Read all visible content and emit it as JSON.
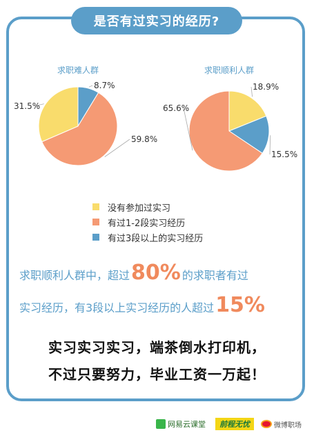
{
  "header": {
    "title": "是否有过实习的经历?"
  },
  "colors": {
    "none": "#f9dc6c",
    "one_two": "#f59a74",
    "three_plus": "#5b9ec9",
    "frame": "#5b9ec9",
    "highlight": "#f08a5d"
  },
  "chart_data": [
    {
      "type": "pie",
      "title": "求职难人群",
      "slices": [
        {
          "name": "没有参加过实习",
          "value": 31.5,
          "label": "31.5%"
        },
        {
          "name": "有过1-2段实习经历",
          "value": 59.8,
          "label": "59.8%"
        },
        {
          "name": "有过3段以上的实习经历",
          "value": 8.7,
          "label": "8.7%"
        }
      ]
    },
    {
      "type": "pie",
      "title": "求职顺利人群",
      "slices": [
        {
          "name": "没有参加过实习",
          "value": 18.9,
          "label": "18.9%"
        },
        {
          "name": "有过1-2段实习经历",
          "value": 65.6,
          "label": "65.6%"
        },
        {
          "name": "有过3段以上的实习经历",
          "value": 15.5,
          "label": "15.5%"
        }
      ]
    }
  ],
  "legend": [
    {
      "label": "没有参加过实习",
      "color": "#f9dc6c"
    },
    {
      "label": "有过1-2段实习经历",
      "color": "#f59a74"
    },
    {
      "label": "有过3段以上的实习经历",
      "color": "#5b9ec9"
    }
  ],
  "summary": {
    "line1_prefix": "求职顺利人群中，超过",
    "line1_big": "80%",
    "line1_suffix": "的求职者有过",
    "line2_prefix": "实习经历，有3段以上实习经历的人超过",
    "line2_big": "15%"
  },
  "slogan": {
    "line1": "实习实习实习，端茶倒水打印机，",
    "line2": "不过只要努力，毕业工资一万起！"
  },
  "footer": {
    "netease": "网易云课堂",
    "qiancheng": "前程无忧",
    "weibo": "微博职场"
  }
}
